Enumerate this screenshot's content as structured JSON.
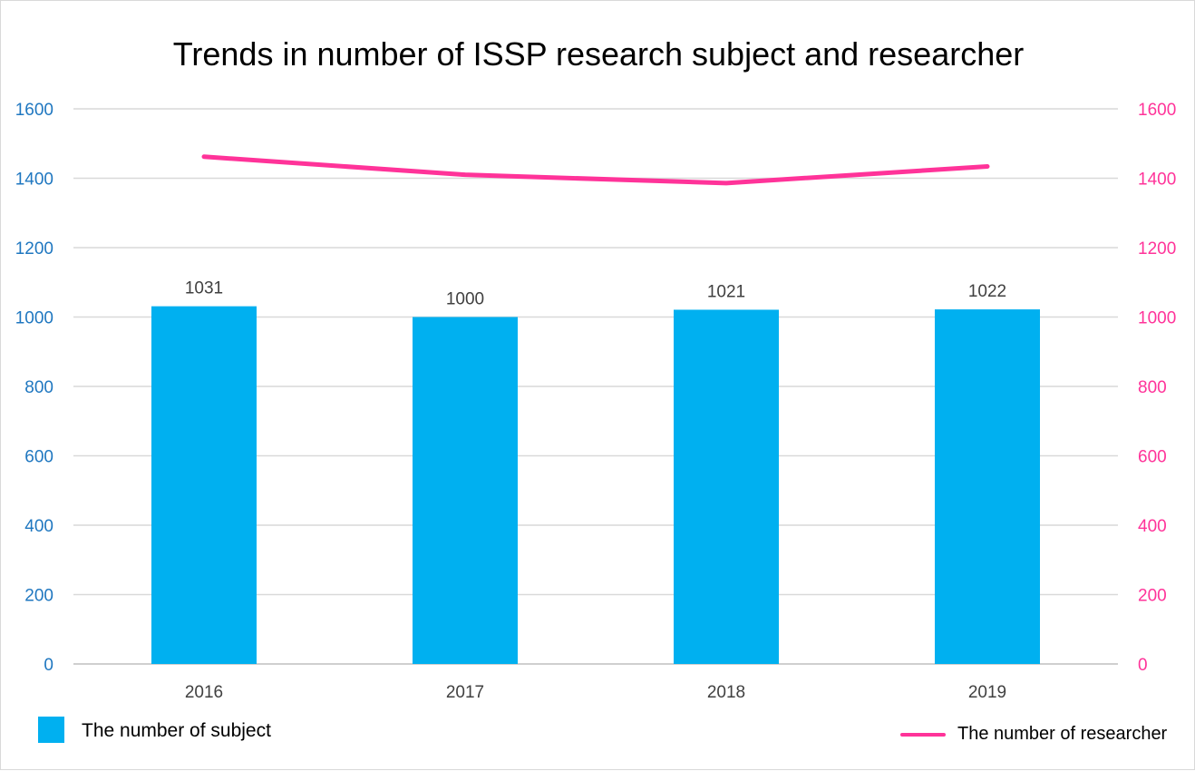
{
  "chart_data": {
    "type": "bar",
    "title": "Trends in number of  ISSP research subject and researcher",
    "categories": [
      "2016",
      "2017",
      "2018",
      "2019"
    ],
    "series": [
      {
        "name": "The number of subject",
        "type": "bar",
        "axis": "left",
        "color": "#00b0f0",
        "values": [
          1031,
          1000,
          1021,
          1022
        ],
        "data_labels": [
          "1031",
          "1000",
          "1021",
          "1022"
        ]
      },
      {
        "name": "The number of researcher",
        "type": "line",
        "axis": "right",
        "color": "#ff3399",
        "values": [
          1462,
          1410,
          1386,
          1434
        ]
      }
    ],
    "ylim": [
      0,
      1600
    ],
    "y_ticks": [
      "0",
      "200",
      "400",
      "600",
      "800",
      "1000",
      "1200",
      "1400",
      "1600"
    ],
    "y_tick_values": [
      0,
      200,
      400,
      600,
      800,
      1000,
      1200,
      1400,
      1600
    ],
    "y_left_color": "#1f77c0",
    "y_right_color": "#ff3399",
    "gridlines": true,
    "legend": "bottom"
  }
}
